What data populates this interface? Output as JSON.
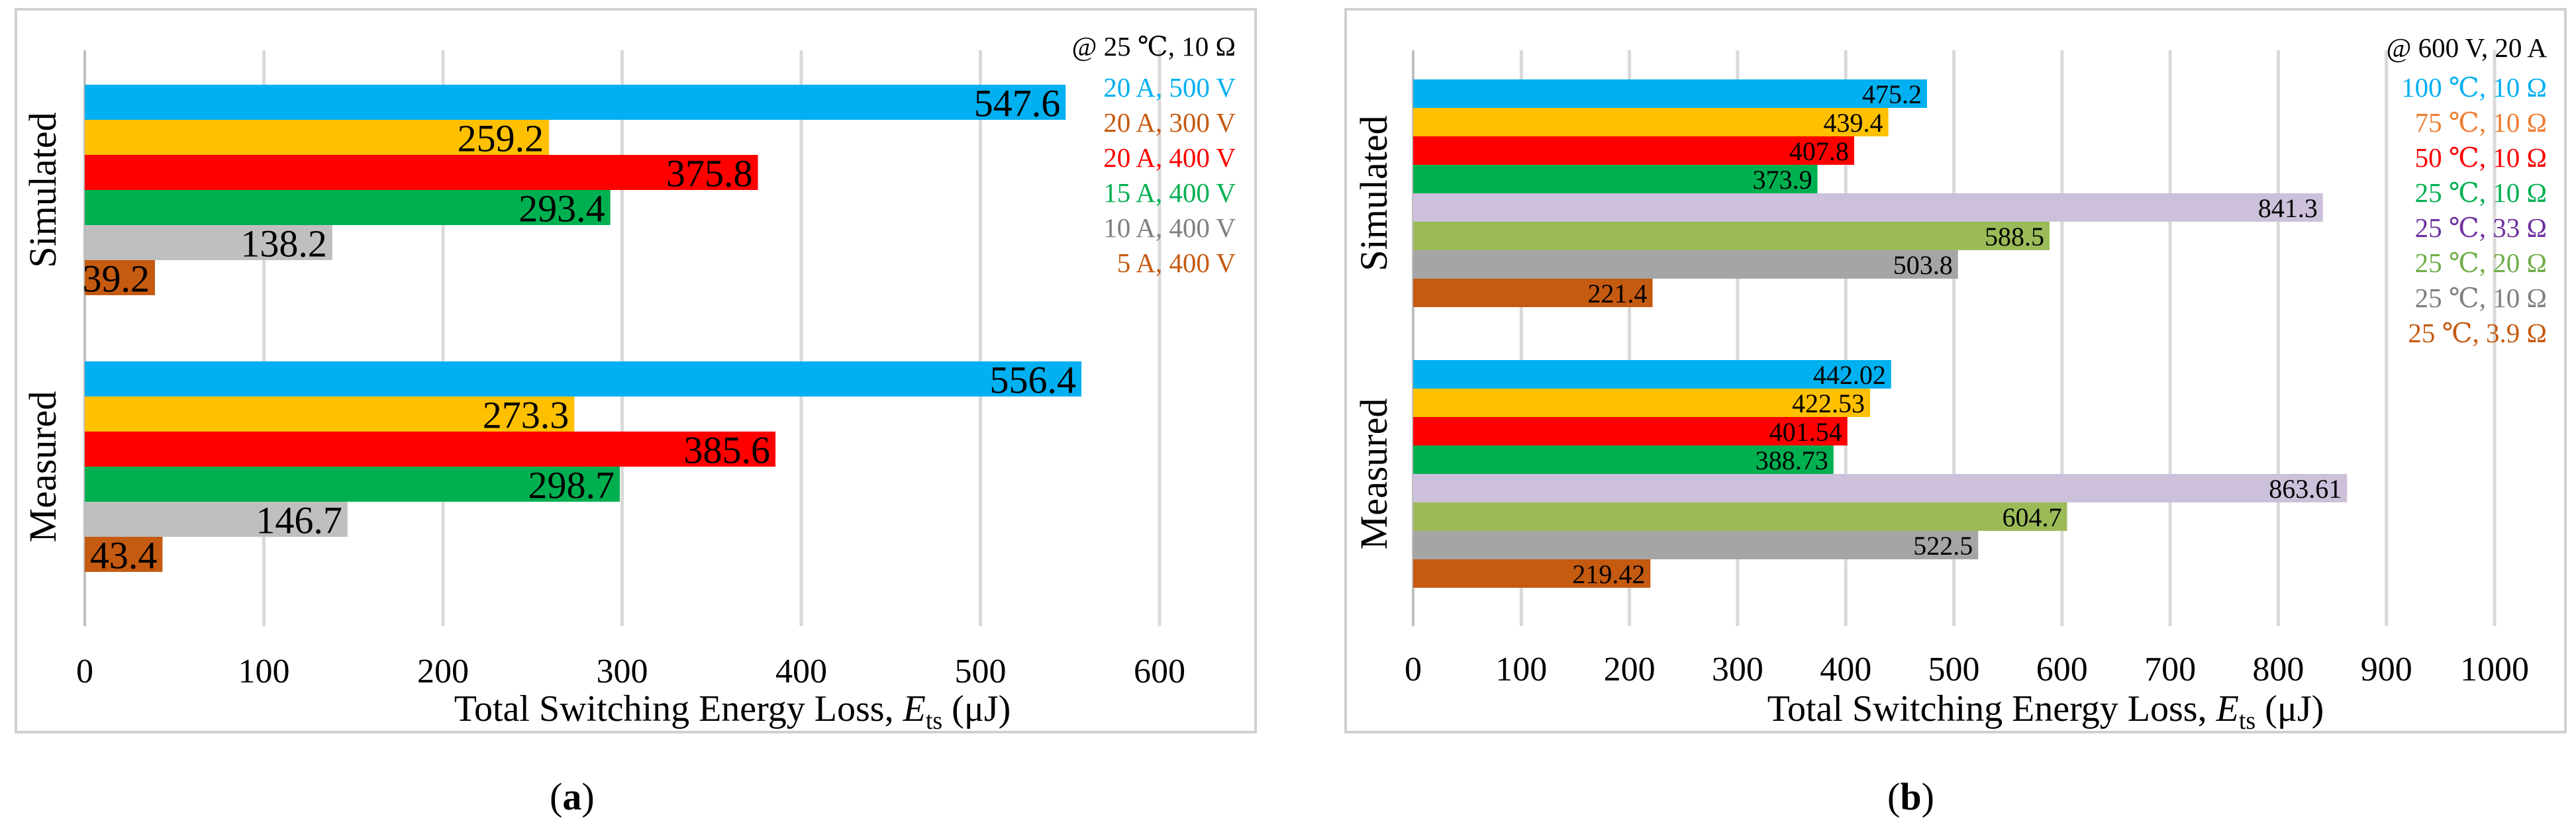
{
  "chart_data": [
    {
      "type": "bar",
      "panel": "a",
      "caption_letter": "a",
      "title": "",
      "xlabel_prefix": "Total Switching Energy Loss, ",
      "xlabel_symbol": "E",
      "xlabel_subscript": "ts",
      "xlabel_suffix": " (μJ)",
      "xlim": [
        0,
        600
      ],
      "xticks": [
        0,
        100,
        200,
        300,
        400,
        500,
        600
      ],
      "grid": true,
      "condition": "@ 25 ℃, 10 Ω",
      "groups": [
        "Simulated",
        "Measured"
      ],
      "series": [
        {
          "name": "20 A, 500 V",
          "color": "#00b0f0",
          "values": [
            547.6,
            556.4
          ],
          "labels": [
            "547.6",
            "556.4"
          ]
        },
        {
          "name": "20 A, 300 V",
          "color": "#ffc000",
          "legend_color": "#c55a11",
          "values": [
            259.2,
            273.3
          ],
          "labels": [
            "259.2",
            "273.3"
          ]
        },
        {
          "name": "20 A, 400 V",
          "color": "#ff0000",
          "values": [
            375.8,
            385.6
          ],
          "labels": [
            "375.8",
            "385.6"
          ]
        },
        {
          "name": "15 A, 400 V",
          "color": "#00b050",
          "values": [
            293.4,
            298.7
          ],
          "labels": [
            "293.4",
            "298.7"
          ]
        },
        {
          "name": "10 A, 400 V",
          "color": "#bfbfbf",
          "legend_color": "#7f7f7f",
          "values": [
            138.2,
            146.7
          ],
          "labels": [
            "138.2",
            "146.7"
          ]
        },
        {
          "name": "5 A, 400 V",
          "color": "#c55a11",
          "values": [
            39.2,
            43.4
          ],
          "labels": [
            "39.2",
            "43.4"
          ]
        }
      ]
    },
    {
      "type": "bar",
      "panel": "b",
      "caption_letter": "b",
      "title": "",
      "xlabel_prefix": "Total Switching Energy Loss, ",
      "xlabel_symbol": "E",
      "xlabel_subscript": "ts",
      "xlabel_suffix": " (μJ)",
      "xlim": [
        0,
        1000
      ],
      "xticks": [
        0,
        100,
        200,
        300,
        400,
        500,
        600,
        700,
        800,
        900,
        1000
      ],
      "grid": true,
      "condition": "@ 600 V, 20 A",
      "groups": [
        "Simulated",
        "Measured"
      ],
      "series": [
        {
          "name": "100 ℃, 10 Ω",
          "color": "#00b0f0",
          "values": [
            475.2,
            442.02
          ],
          "labels": [
            "475.2",
            "442.02"
          ]
        },
        {
          "name": "75 ℃, 10 Ω",
          "color": "#ffc000",
          "legend_color": "#ed7d31",
          "values": [
            439.4,
            422.53
          ],
          "labels": [
            "439.4",
            "422.53"
          ]
        },
        {
          "name": "50 ℃, 10 Ω",
          "color": "#ff0000",
          "values": [
            407.8,
            401.54
          ],
          "labels": [
            "407.8",
            "401.54"
          ]
        },
        {
          "name": "25 ℃, 10 Ω",
          "color": "#00b050",
          "values": [
            373.9,
            388.73
          ],
          "labels": [
            "373.9",
            "388.73"
          ]
        },
        {
          "name": "25 ℃, 33 Ω",
          "color": "#ccc0da",
          "legend_color": "#7030a0",
          "values": [
            841.3,
            863.61
          ],
          "labels": [
            "841.3",
            "863.61"
          ]
        },
        {
          "name": "25 ℃, 20 Ω",
          "color": "#9bbb59",
          "legend_color": "#70ad47",
          "values": [
            588.5,
            604.7
          ],
          "labels": [
            "588.5",
            "604.7"
          ]
        },
        {
          "name": "25 ℃, 10 Ω",
          "color": "#a5a5a5",
          "legend_color": "#7f7f7f",
          "values": [
            503.8,
            522.5
          ],
          "labels": [
            "503.8",
            "522.5"
          ]
        },
        {
          "name": "25 ℃, 3.9 Ω",
          "color": "#c55a11",
          "values": [
            221.4,
            219.42
          ],
          "labels": [
            "221.4",
            "219.42"
          ]
        }
      ]
    }
  ]
}
